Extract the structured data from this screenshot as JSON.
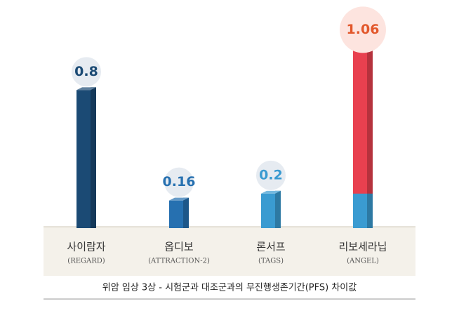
{
  "chart_data": {
    "type": "bar",
    "categories": [
      "사이람자",
      "옵디보",
      "론서프",
      "리보세라닙"
    ],
    "subcategories": [
      "(REGARD)",
      "(ATTRACTION-2)",
      "(TAGS)",
      "(ANGEL)"
    ],
    "values": [
      0.8,
      0.16,
      0.2,
      1.06
    ],
    "colors": [
      "#1b4a74",
      "#2670b0",
      "#3a9bd1",
      "#e8404f"
    ],
    "label_colors": [
      "#1b4a74",
      "#2670b0",
      "#3a9bd1",
      "#e2582c"
    ],
    "ylim": [
      0,
      1.2
    ],
    "caption": "위암 임상 3상 - 시험군과 대조군과의 무진행생존기간(PFS) 차이값"
  }
}
